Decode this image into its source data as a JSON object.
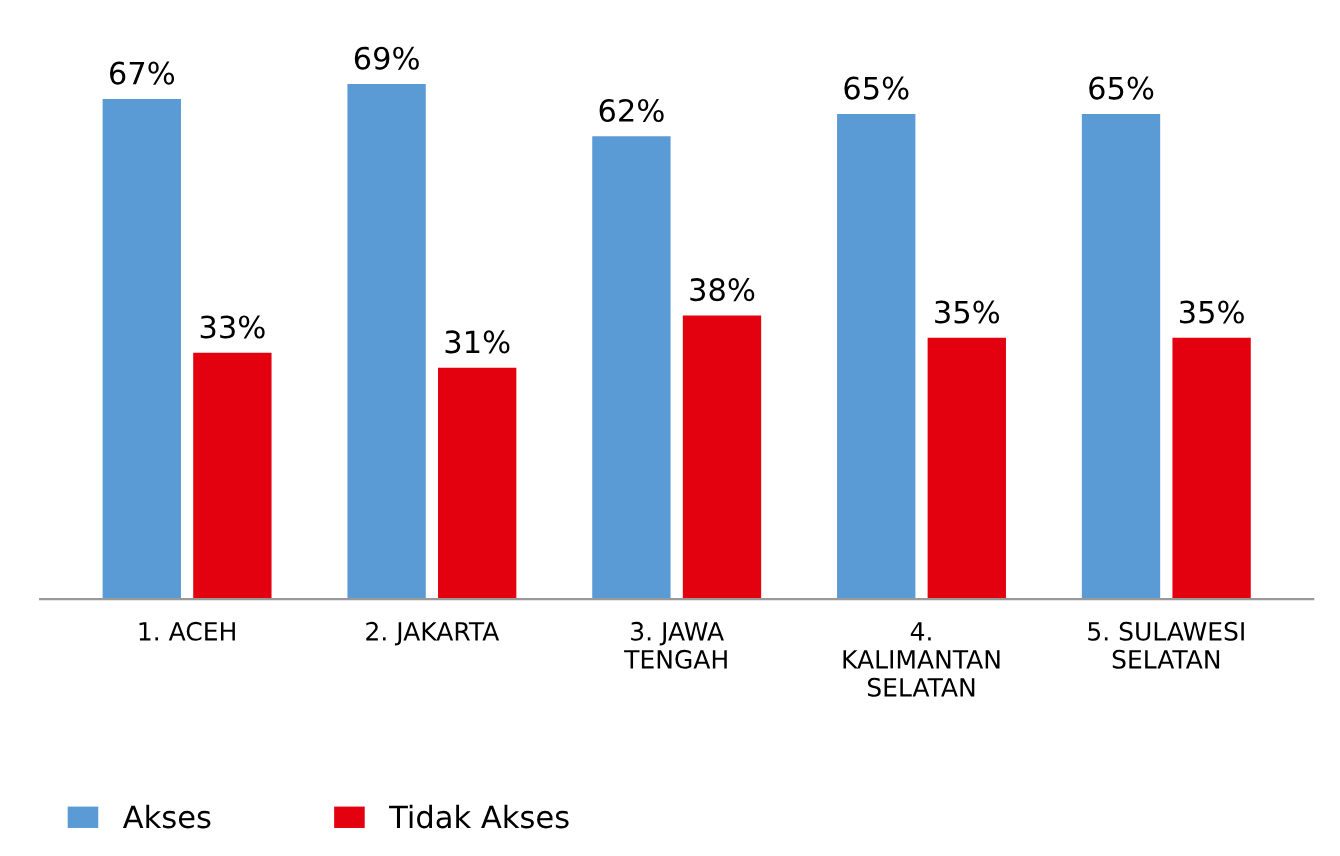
{
  "chart_data": {
    "type": "bar",
    "categories": [
      "1. ACEH",
      "2. JAKARTA",
      "3. JAWA\nTENGAH",
      "4.\nKALIMANTAN\nSELATAN",
      "5. SULAWESI\nSELATAN"
    ],
    "series": [
      {
        "name": "Akses",
        "color": "#5b9bd5",
        "values": [
          67,
          69,
          62,
          65,
          65
        ],
        "value_labels": [
          "67%",
          "69%",
          "62%",
          "65%",
          "65%"
        ]
      },
      {
        "name": "Tidak Akses",
        "color": "#e3000f",
        "values": [
          33,
          31,
          38,
          35,
          35
        ],
        "value_labels": [
          "33%",
          "31%",
          "38%",
          "35%",
          "35%"
        ]
      }
    ],
    "legend": "bottom left",
    "grid": false
  }
}
